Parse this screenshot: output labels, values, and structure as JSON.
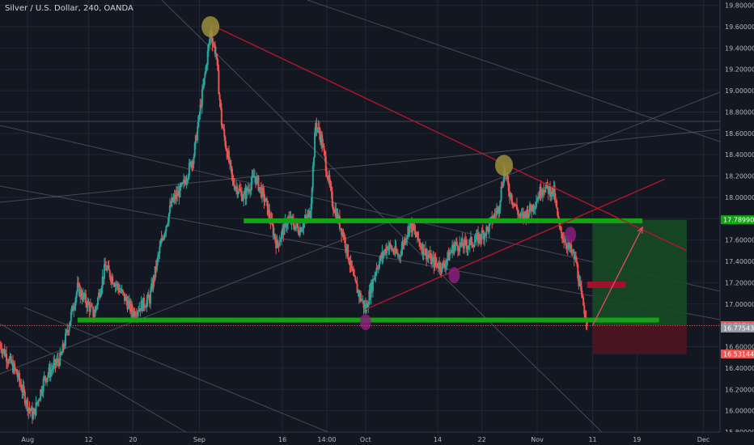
{
  "header": {
    "title": "Silver / U.S. Dollar, 240, OANDA"
  },
  "colors": {
    "background": "#131722",
    "grid": "#232733",
    "axis_text": "#b2b5be",
    "up": "#26a69a",
    "down": "#ef5350",
    "support": "#12a312",
    "trend_red": "#b0162c",
    "annotation_yellow": "#9a8f3a",
    "annotation_purple": "#8a1f7c",
    "target_zone": "#174a26",
    "stop_zone": "#4a1420"
  },
  "chart_data": {
    "type": "candlestick",
    "symbol": "Silver / U.S. Dollar",
    "interval": "240",
    "source": "OANDA",
    "ylim": [
      15.8,
      19.85
    ],
    "y_ticks": [
      "19.80000",
      "19.60000",
      "19.40000",
      "19.20000",
      "19.00000",
      "18.80000",
      "18.60000",
      "18.40000",
      "18.20000",
      "18.00000",
      "17.80000",
      "17.60000",
      "17.40000",
      "17.20000",
      "17.00000",
      "16.80000",
      "16.60000",
      "16.40000",
      "16.20000",
      "16.00000",
      "15.80000"
    ],
    "x_ticks": [
      "Aug",
      "12",
      "20",
      "Sep",
      "16",
      "14:00",
      "Oct",
      "14",
      "22",
      "Nov",
      "11",
      "19",
      "Dec"
    ],
    "x_domain": [
      "2020-07-27",
      "2020-12-04"
    ],
    "x_tick_dates": [
      "2020-08-01",
      "2020-08-12",
      "2020-08-20",
      "2020-09-01",
      "2020-09-16",
      "2020-09-24",
      "2020-10-01",
      "2020-10-14",
      "2020-10-22",
      "2020-11-01",
      "2020-11-11",
      "2020-11-19",
      "2020-12-01"
    ],
    "price_labels": [
      {
        "text": "17.78990",
        "value": 17.7899,
        "color": "#12a312"
      },
      {
        "text": "16.79744",
        "value": 16.79744,
        "color": "#ef5350"
      },
      {
        "text": "16.77543",
        "value": 16.77543,
        "color": "#9598a1"
      },
      {
        "text": "16.53144",
        "value": 16.53144,
        "color": "#ef5350"
      }
    ],
    "price_anchors": [
      [
        "2020-07-27",
        16.62
      ],
      [
        "2020-07-30",
        16.35
      ],
      [
        "2020-08-01",
        16.05
      ],
      [
        "2020-08-02",
        15.95
      ],
      [
        "2020-08-04",
        16.3
      ],
      [
        "2020-08-07",
        16.5
      ],
      [
        "2020-08-10",
        17.15
      ],
      [
        "2020-08-13",
        16.9
      ],
      [
        "2020-08-15",
        17.35
      ],
      [
        "2020-08-18",
        17.1
      ],
      [
        "2020-08-20",
        16.92
      ],
      [
        "2020-08-23",
        17.05
      ],
      [
        "2020-08-25",
        17.55
      ],
      [
        "2020-08-27",
        17.95
      ],
      [
        "2020-08-29",
        18.1
      ],
      [
        "2020-08-31",
        18.4
      ],
      [
        "2020-09-02",
        19.15
      ],
      [
        "2020-09-03",
        19.55
      ],
      [
        "2020-09-04",
        19.35
      ],
      [
        "2020-09-05",
        18.7
      ],
      [
        "2020-09-07",
        18.15
      ],
      [
        "2020-09-09",
        18.0
      ],
      [
        "2020-09-11",
        18.2
      ],
      [
        "2020-09-13",
        17.95
      ],
      [
        "2020-09-15",
        17.55
      ],
      [
        "2020-09-17",
        17.8
      ],
      [
        "2020-09-19",
        17.7
      ],
      [
        "2020-09-21",
        17.85
      ],
      [
        "2020-09-22",
        18.7
      ],
      [
        "2020-09-23",
        18.55
      ],
      [
        "2020-09-25",
        17.95
      ],
      [
        "2020-09-27",
        17.65
      ],
      [
        "2020-09-29",
        17.2
      ],
      [
        "2020-10-01",
        16.95
      ],
      [
        "2020-10-03",
        17.35
      ],
      [
        "2020-10-05",
        17.55
      ],
      [
        "2020-10-07",
        17.45
      ],
      [
        "2020-10-09",
        17.75
      ],
      [
        "2020-10-11",
        17.55
      ],
      [
        "2020-10-13",
        17.4
      ],
      [
        "2020-10-15",
        17.35
      ],
      [
        "2020-10-17",
        17.55
      ],
      [
        "2020-10-19",
        17.55
      ],
      [
        "2020-10-21",
        17.6
      ],
      [
        "2020-10-23",
        17.7
      ],
      [
        "2020-10-25",
        17.9
      ],
      [
        "2020-10-26",
        18.25
      ],
      [
        "2020-10-27",
        18.05
      ],
      [
        "2020-10-29",
        17.8
      ],
      [
        "2020-10-31",
        17.9
      ],
      [
        "2020-11-02",
        18.1
      ],
      [
        "2020-11-04",
        18.05
      ],
      [
        "2020-11-05",
        17.7
      ],
      [
        "2020-11-06",
        17.6
      ],
      [
        "2020-11-08",
        17.4
      ],
      [
        "2020-11-09",
        17.05
      ],
      [
        "2020-11-10",
        16.85
      ]
    ],
    "support_lines": [
      {
        "price": 17.78,
        "from": "2020-09-09",
        "to": "2020-11-20"
      },
      {
        "price": 16.85,
        "from": "2020-08-10",
        "to": "2020-11-23"
      }
    ],
    "trend_lines": [
      {
        "from": [
          "2020-09-03",
          19.62
        ],
        "to": [
          "2020-11-28",
          17.5
        ]
      },
      {
        "from": [
          "2020-10-01",
          16.95
        ],
        "to": [
          "2020-11-24",
          18.17
        ]
      }
    ],
    "annotations": [
      {
        "kind": "yellow-circle",
        "at": [
          "2020-09-03",
          19.6
        ]
      },
      {
        "kind": "yellow-circle",
        "at": [
          "2020-10-26",
          18.3
        ]
      },
      {
        "kind": "purple-circle",
        "at": [
          "2020-10-01",
          16.83
        ]
      },
      {
        "kind": "purple-circle",
        "at": [
          "2020-10-17",
          17.27
        ]
      },
      {
        "kind": "purple-circle",
        "at": [
          "2020-11-07",
          17.65
        ]
      }
    ],
    "position": {
      "entry_date": "2020-11-11",
      "end_date": "2020-11-28",
      "target": 17.79,
      "entry": 16.8,
      "stop": 16.53
    },
    "resistance_block": {
      "price": 17.18,
      "from": "2020-11-10",
      "to": "2020-11-17"
    },
    "projection_arrow": {
      "from": [
        "2020-11-11",
        16.8
      ],
      "to": [
        "2020-11-20",
        17.72
      ]
    }
  }
}
